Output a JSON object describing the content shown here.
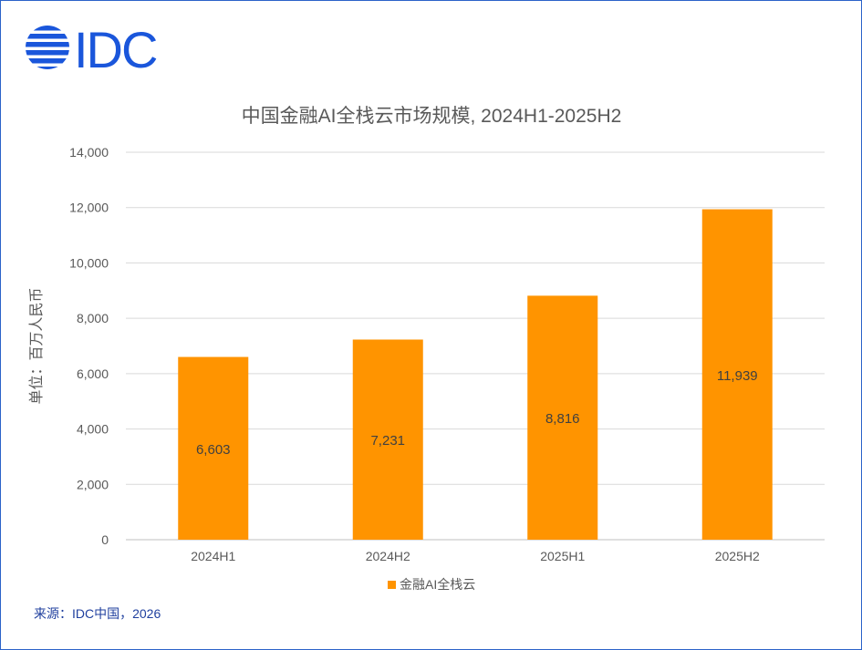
{
  "logo": {
    "brand": "IDC",
    "color": "#1a56db"
  },
  "source": "来源：IDC中国，2026",
  "chart_data": {
    "type": "bar",
    "title": "中国金融AI全栈云市场规模, 2024H1-2025H2",
    "ylabel": "单位：百万人民币",
    "xlabel": "",
    "categories": [
      "2024H1",
      "2024H2",
      "2025H1",
      "2025H2"
    ],
    "series": [
      {
        "name": "金融AI全栈云",
        "values": [
          6603,
          7231,
          8816,
          11939
        ],
        "color": "#ff9400"
      }
    ],
    "data_labels": [
      "6,603",
      "7,231",
      "8,816",
      "11,939"
    ],
    "ylim": [
      0,
      14000
    ],
    "yticks": [
      0,
      2000,
      4000,
      6000,
      8000,
      10000,
      12000,
      14000
    ],
    "ytick_labels": [
      "0",
      "2,000",
      "4,000",
      "6,000",
      "8,000",
      "10,000",
      "12,000",
      "14,000"
    ],
    "grid": true,
    "legend_position": "bottom"
  }
}
